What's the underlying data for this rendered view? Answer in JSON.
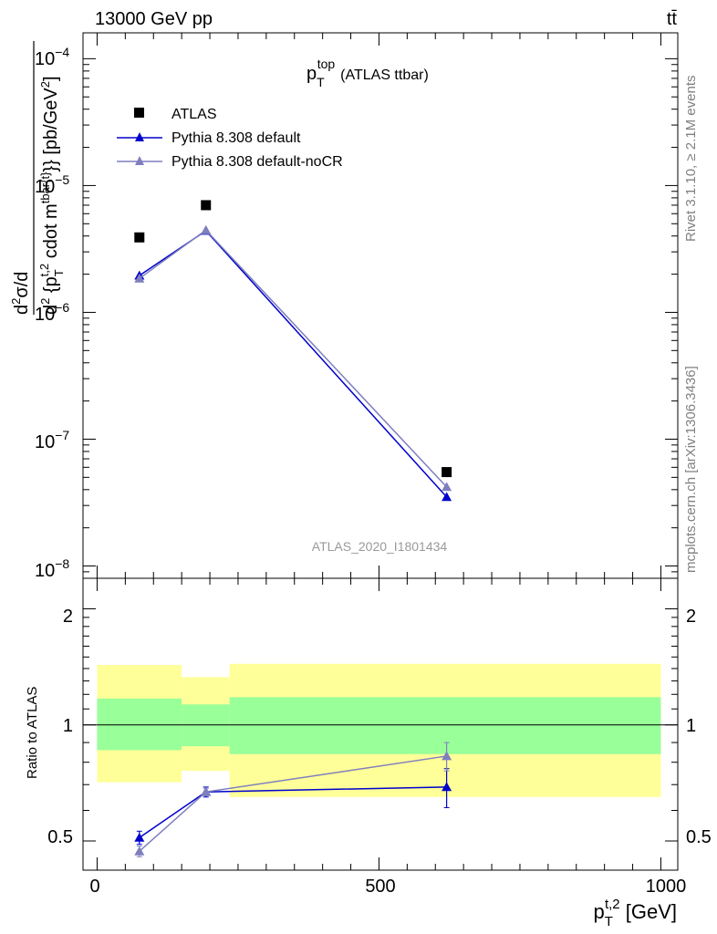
{
  "header": {
    "beam_label": "13000 GeV pp",
    "process_label": "tt̄",
    "plot_title_main": "p",
    "plot_title_sup": "top",
    "plot_title_sub": "T",
    "plot_title_rest": "(ATLAS ttbar)",
    "analysis_id": "ATLAS_2020_I1801434",
    "side_label_rivet": "Rivet 3.1.10, ≥ 2.1M events",
    "side_label_site": "mcplots.cern.ch [arXiv:1306.3436]"
  },
  "axes": {
    "ylabel_main": "d²σ/d{p_T^{t,2} cdot m^{tbar{t}}} [pb/GeV²]",
    "ylabel_ratio": "Ratio to ATLAS",
    "xlabel": "p_T^{t,2} [GeV]",
    "x_ticks": [
      "0",
      "500",
      "1000"
    ],
    "y_main_ticks": [
      "10",
      "10",
      "10",
      "10",
      "10"
    ],
    "y_main_tick_exps": [
      "−4",
      "−5",
      "−6",
      "−7",
      "−8"
    ],
    "y_ratio_ticks": [
      "2",
      "1",
      "0.5"
    ]
  },
  "legend": {
    "items": [
      {
        "label": "ATLAS",
        "color": "#000000",
        "marker": "square"
      },
      {
        "label": "Pythia 8.308 default",
        "color": "#0000cc",
        "marker": "triangle"
      },
      {
        "label": "Pythia 8.308 default-noCR",
        "color": "#7f7fbf",
        "marker": "triangle"
      }
    ]
  },
  "chart_data": {
    "type": "line",
    "main_panel": {
      "y_scale": "log",
      "xlim": [
        -25,
        1030
      ],
      "ylim": [
        8e-09,
        0.00016
      ],
      "x": [
        75,
        193,
        620
      ],
      "series": [
        {
          "name": "ATLAS",
          "values": [
            3.9e-06,
            7e-06,
            5.5e-08
          ],
          "color": "#000000"
        },
        {
          "name": "Pythia 8.308 default",
          "values": [
            1.95e-06,
            4.4e-06,
            3.5e-08
          ],
          "color": "#0000cc"
        },
        {
          "name": "Pythia 8.308 default-noCR",
          "values": [
            1.85e-06,
            4.45e-06,
            4.2e-08
          ],
          "color": "#7f7fbf"
        }
      ]
    },
    "ratio_panel": {
      "y_scale": "log",
      "ylim": [
        0.42,
        2.4
      ],
      "x": [
        75,
        193,
        620
      ],
      "bins": [
        [
          0,
          150
        ],
        [
          150,
          235
        ],
        [
          235,
          1000
        ]
      ],
      "band_total": [
        [
          0.71,
          1.43
        ],
        [
          0.76,
          1.33
        ],
        [
          0.65,
          1.44
        ]
      ],
      "band_stat": [
        [
          0.86,
          1.17
        ],
        [
          0.88,
          1.13
        ],
        [
          0.84,
          1.18
        ]
      ],
      "series": [
        {
          "name": "Pythia 8.308 default",
          "values": [
            0.51,
            0.67,
            0.69
          ],
          "errors": [
            0.02,
            0.02,
            0.08
          ],
          "color": "#0000cc"
        },
        {
          "name": "Pythia 8.308 default-noCR",
          "values": [
            0.47,
            0.67,
            0.83
          ],
          "errors": [
            0.015,
            0.015,
            0.07
          ],
          "color": "#7f7fbf"
        }
      ]
    }
  }
}
